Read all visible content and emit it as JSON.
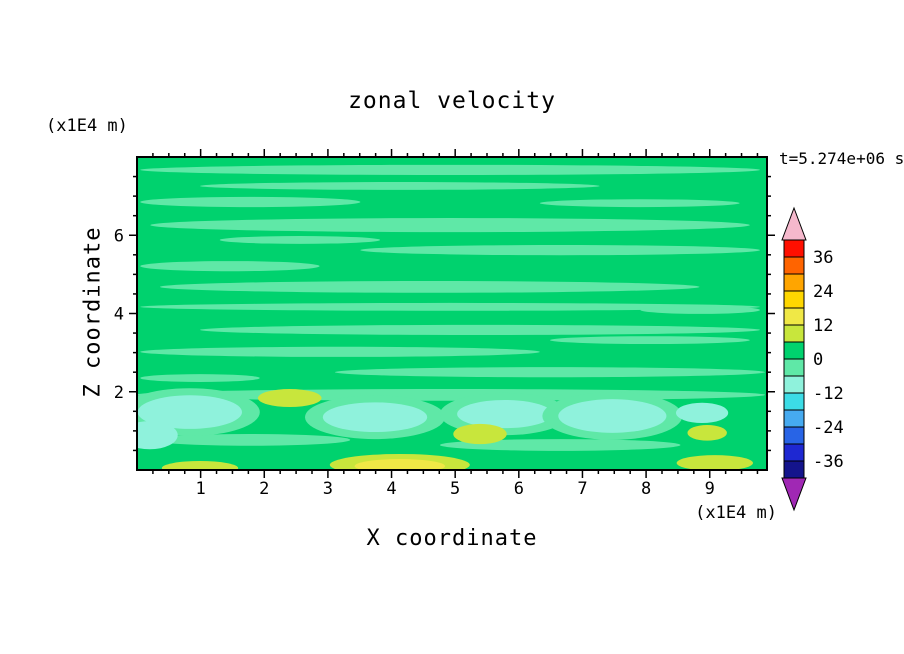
{
  "page": {
    "background": "#FFFFFF",
    "text_color": "#000000"
  },
  "chart_data": {
    "type": "heatmap",
    "title": "zonal velocity",
    "time_annotation": "t=5.274e+06 s",
    "xlabel": "X coordinate",
    "ylabel": "Z coordinate",
    "x_unit_label": "(x1E4 m)",
    "y_unit_label": "(x1E4 m)",
    "xlim": [
      0,
      9.9
    ],
    "ylim": [
      0,
      8
    ],
    "x_major_ticks": [
      1,
      2,
      3,
      4,
      5,
      6,
      7,
      8,
      9
    ],
    "y_major_ticks": [
      2,
      4,
      6
    ],
    "x_minor_step": 0.25,
    "y_minor_step": 0.5,
    "grid": false,
    "legend_position": "right-colorbar",
    "colorbar": {
      "min": -42,
      "max": 42,
      "step": 6,
      "tick_labels": [
        36,
        24,
        12,
        0,
        -12,
        -24,
        -36
      ],
      "segment_colors_top_to_bottom": [
        "#FF0F00",
        "#FF6400",
        "#FFA500",
        "#FFD700",
        "#F0E846",
        "#C8E63C",
        "#00D26E",
        "#5FE8A7",
        "#8FF2DC",
        "#3CDCE6",
        "#46AAF0",
        "#2864E6",
        "#1E28D2",
        "#14148C"
      ],
      "over_color": "#F5B8CC",
      "under_color": "#A028B4"
    },
    "field": {
      "background": "green",
      "palette": {
        "green": "#00D26E",
        "green_light": "#5FE8A7",
        "aqua": "#8FF2DC",
        "yellow_green": "#C8E63C",
        "yellow": "#F0E846"
      },
      "streaks": [
        {
          "x": 4.92,
          "z": 7.67,
          "rx": 4.87,
          "ry": 0.13
        },
        {
          "x": 4.13,
          "z": 7.26,
          "rx": 3.14,
          "ry": 0.1
        },
        {
          "x": 1.78,
          "z": 6.85,
          "rx": 1.73,
          "ry": 0.13
        },
        {
          "x": 7.9,
          "z": 6.82,
          "rx": 1.57,
          "ry": 0.1
        },
        {
          "x": 4.92,
          "z": 6.26,
          "rx": 4.71,
          "ry": 0.18
        },
        {
          "x": 2.56,
          "z": 5.88,
          "rx": 1.26,
          "ry": 0.1
        },
        {
          "x": 6.65,
          "z": 5.62,
          "rx": 3.14,
          "ry": 0.13
        },
        {
          "x": 1.46,
          "z": 5.21,
          "rx": 1.41,
          "ry": 0.13
        },
        {
          "x": 4.6,
          "z": 4.68,
          "rx": 4.24,
          "ry": 0.15
        },
        {
          "x": 4.92,
          "z": 4.17,
          "rx": 4.87,
          "ry": 0.1
        },
        {
          "x": 8.85,
          "z": 4.09,
          "rx": 0.94,
          "ry": 0.1
        },
        {
          "x": 5.39,
          "z": 3.58,
          "rx": 4.4,
          "ry": 0.13
        },
        {
          "x": 8.06,
          "z": 3.32,
          "rx": 1.57,
          "ry": 0.1
        },
        {
          "x": 3.19,
          "z": 3.02,
          "rx": 3.14,
          "ry": 0.13
        },
        {
          "x": 6.49,
          "z": 2.5,
          "rx": 3.38,
          "ry": 0.13
        },
        {
          "x": 0.99,
          "z": 2.35,
          "rx": 0.94,
          "ry": 0.1
        },
        {
          "x": 4.92,
          "z": 1.92,
          "rx": 4.95,
          "ry": 0.15
        },
        {
          "x": 1.78,
          "z": 0.77,
          "rx": 1.57,
          "ry": 0.15
        },
        {
          "x": 6.65,
          "z": 0.64,
          "rx": 1.89,
          "ry": 0.15
        }
      ],
      "blobs": [
        {
          "x": 0.83,
          "z": 1.48,
          "rx": 1.1,
          "ry": 0.61,
          "color": "green_light"
        },
        {
          "x": 0.83,
          "z": 1.48,
          "rx": 0.82,
          "ry": 0.43,
          "color": "aqua"
        },
        {
          "x": 0.2,
          "z": 0.89,
          "rx": 0.44,
          "ry": 0.36,
          "color": "aqua"
        },
        {
          "x": 2.4,
          "z": 1.84,
          "rx": 0.5,
          "ry": 0.23,
          "color": "yellow_green"
        },
        {
          "x": 3.74,
          "z": 1.35,
          "rx": 1.1,
          "ry": 0.56,
          "color": "green_light"
        },
        {
          "x": 3.74,
          "z": 1.35,
          "rx": 0.82,
          "ry": 0.38,
          "color": "aqua"
        },
        {
          "x": 5.78,
          "z": 1.43,
          "rx": 1.02,
          "ry": 0.54,
          "color": "green_light"
        },
        {
          "x": 5.78,
          "z": 1.43,
          "rx": 0.75,
          "ry": 0.36,
          "color": "aqua"
        },
        {
          "x": 5.39,
          "z": 0.92,
          "rx": 0.42,
          "ry": 0.26,
          "color": "yellow_green"
        },
        {
          "x": 7.47,
          "z": 1.38,
          "rx": 1.1,
          "ry": 0.61,
          "color": "green_light"
        },
        {
          "x": 7.47,
          "z": 1.38,
          "rx": 0.85,
          "ry": 0.43,
          "color": "aqua"
        },
        {
          "x": 8.88,
          "z": 1.46,
          "rx": 0.41,
          "ry": 0.26,
          "color": "aqua"
        },
        {
          "x": 8.96,
          "z": 0.95,
          "rx": 0.31,
          "ry": 0.2,
          "color": "yellow_green"
        },
        {
          "x": 4.13,
          "z": 0.13,
          "rx": 1.1,
          "ry": 0.28,
          "color": "yellow_green"
        },
        {
          "x": 4.13,
          "z": 0.1,
          "rx": 0.71,
          "ry": 0.18,
          "color": "yellow"
        },
        {
          "x": 0.99,
          "z": 0.05,
          "rx": 0.6,
          "ry": 0.18,
          "color": "yellow_green"
        },
        {
          "x": 9.08,
          "z": 0.18,
          "rx": 0.6,
          "ry": 0.2,
          "color": "yellow_green"
        }
      ]
    }
  }
}
